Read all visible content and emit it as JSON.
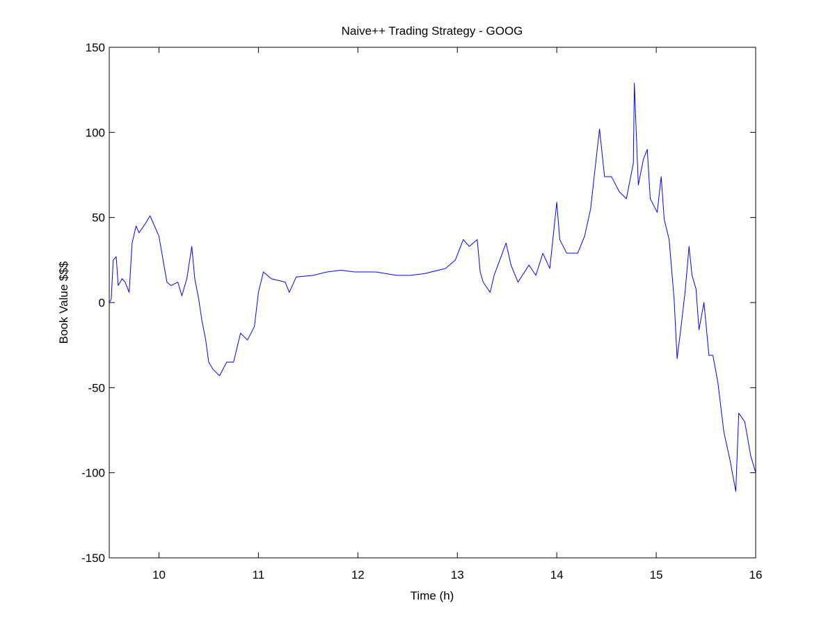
{
  "chart_data": {
    "type": "line",
    "title": "Naive++ Trading Strategy - GOOG",
    "x_label": "Time (h)",
    "y_label": "Book Value $$$",
    "xlim": [
      9.5,
      16
    ],
    "ylim": [
      -150,
      150
    ],
    "xticks": [
      10,
      11,
      12,
      13,
      14,
      15,
      16
    ],
    "yticks": [
      -150,
      -100,
      -50,
      0,
      50,
      100,
      150
    ],
    "series": [
      {
        "color": "#0000ff",
        "x": [
          9.5,
          9.52,
          9.54,
          9.57,
          9.59,
          9.63,
          9.66,
          9.7,
          9.73,
          9.77,
          9.8,
          9.87,
          9.91,
          9.94,
          10.0,
          10.05,
          10.08,
          10.12,
          10.19,
          10.23,
          10.28,
          10.33,
          10.36,
          10.4,
          10.43,
          10.47,
          10.5,
          10.54,
          10.61,
          10.68,
          10.75,
          10.82,
          10.89,
          10.96,
          11.0,
          11.05,
          11.13,
          11.27,
          11.31,
          11.38,
          11.55,
          11.69,
          11.83,
          11.97,
          12.18,
          12.39,
          12.53,
          12.67,
          12.88,
          12.98,
          13.06,
          13.12,
          13.2,
          13.23,
          13.26,
          13.33,
          13.37,
          13.44,
          13.49,
          13.54,
          13.61,
          13.72,
          13.79,
          13.86,
          13.93,
          14.0,
          14.03,
          14.1,
          14.21,
          14.28,
          14.34,
          14.38,
          14.43,
          14.48,
          14.55,
          14.63,
          14.7,
          14.77,
          14.78,
          14.82,
          14.87,
          14.91,
          14.94,
          15.01,
          15.05,
          15.08,
          15.13,
          15.18,
          15.21,
          15.25,
          15.29,
          15.33,
          15.36,
          15.4,
          15.43,
          15.48,
          15.53,
          15.57,
          15.62,
          15.68,
          15.74,
          15.8,
          15.83,
          15.89,
          15.95,
          16.0
        ],
        "values": [
          0,
          2,
          25,
          27,
          10,
          14,
          12,
          6,
          35,
          45,
          41,
          47,
          51,
          47,
          39,
          22,
          12,
          10,
          12,
          4,
          14,
          33,
          14,
          2,
          -10,
          -22,
          -35,
          -39,
          -43,
          -35,
          -35,
          -18,
          -22,
          -14,
          6,
          18,
          14,
          12,
          6,
          15,
          16,
          18,
          19,
          18,
          18,
          16,
          16,
          17,
          20,
          25,
          37,
          33,
          37,
          18,
          12,
          6,
          16,
          27,
          35,
          22,
          12,
          22,
          16,
          29,
          20,
          59,
          37,
          29,
          29,
          39,
          55,
          76,
          102,
          74,
          74,
          65,
          61,
          82,
          129,
          69,
          84,
          90,
          61,
          53,
          74,
          49,
          37,
          2,
          -33,
          -14,
          6,
          33,
          16,
          8,
          -16,
          0,
          -31,
          -31,
          -47,
          -76,
          -92,
          -111,
          -65,
          -70,
          -90,
          -100
        ]
      }
    ]
  }
}
